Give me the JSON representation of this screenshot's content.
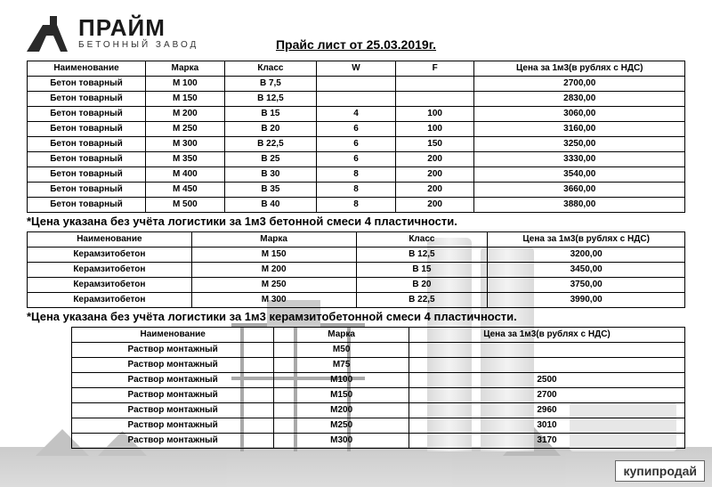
{
  "company": {
    "name": "ПРАЙМ",
    "subtitle": "БЕТОННЫЙ ЗАВОД"
  },
  "title": "Прайс лист от 25.03.2019г.",
  "table1": {
    "headers": [
      "Наименование",
      "Марка",
      "Класс",
      "W",
      "F",
      "Цена за 1м3(в рублях с НДС)"
    ],
    "rows": [
      [
        "Бетон товарный",
        "М 100",
        "В 7,5",
        "",
        "",
        "2700,00"
      ],
      [
        "Бетон товарный",
        "М 150",
        "В 12,5",
        "",
        "",
        "2830,00"
      ],
      [
        "Бетон товарный",
        "М 200",
        "В 15",
        "4",
        "100",
        "3060,00"
      ],
      [
        "Бетон товарный",
        "М 250",
        "В 20",
        "6",
        "100",
        "3160,00"
      ],
      [
        "Бетон товарный",
        "М 300",
        "В 22,5",
        "6",
        "150",
        "3250,00"
      ],
      [
        "Бетон товарный",
        "М 350",
        "В 25",
        "6",
        "200",
        "3330,00"
      ],
      [
        "Бетон товарный",
        "М 400",
        "В 30",
        "8",
        "200",
        "3540,00"
      ],
      [
        "Бетон товарный",
        "М 450",
        "В 35",
        "8",
        "200",
        "3660,00"
      ],
      [
        "Бетон товарный",
        "М 500",
        "В 40",
        "8",
        "200",
        "3880,00"
      ]
    ]
  },
  "note1": "*Цена указана без учёта логистики за 1м3 бетонной смеси 4 пластичности.",
  "table2": {
    "headers": [
      "Наименование",
      "Марка",
      "Класс",
      "Цена за 1м3(в рублях с НДС)"
    ],
    "rows": [
      [
        "Керамзитобетон",
        "М 150",
        "В 12,5",
        "3200,00"
      ],
      [
        "Керамзитобетон",
        "М 200",
        "В 15",
        "3450,00"
      ],
      [
        "Керамзитобетон",
        "М 250",
        "В 20",
        "3750,00"
      ],
      [
        "Керамзитобетон",
        "М 300",
        "В 22,5",
        "3990,00"
      ]
    ]
  },
  "note2": "*Цена указана без учёта логистики за 1м3 керамзитобетонной смеси 4 пластичности.",
  "table3": {
    "headers": [
      "Наименование",
      "Марка",
      "Цена за 1м3(в рублях с НДС)"
    ],
    "rows": [
      [
        "Раствор монтажный",
        "М50",
        ""
      ],
      [
        "Раствор монтажный",
        "М75",
        ""
      ],
      [
        "Раствор монтажный",
        "М100",
        "2500"
      ],
      [
        "Раствор монтажный",
        "М150",
        "2700"
      ],
      [
        "Раствор монтажный",
        "М200",
        "2960"
      ],
      [
        "Раствор монтажный",
        "М250",
        "3010"
      ],
      [
        "Раствор монтажный",
        "М300",
        "3170"
      ]
    ]
  },
  "watermark": "купипродай",
  "colors": {
    "text": "#1a1a1a",
    "border": "#000000",
    "bg": "#ffffff"
  }
}
